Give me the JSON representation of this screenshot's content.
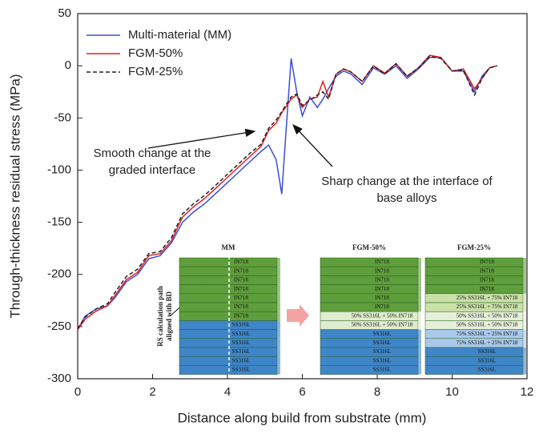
{
  "chart_data": {
    "type": "line",
    "xlabel": "Distance along build from substrate (mm)",
    "ylabel": "Through-thickness residual stress (MPa)",
    "xlim": [
      0,
      12
    ],
    "xticks": [
      0,
      2,
      4,
      6,
      8,
      10,
      12
    ],
    "ylim": [
      -300,
      50
    ],
    "yticks": [
      -300,
      -250,
      -200,
      -150,
      -100,
      -50,
      0,
      50
    ],
    "grid": false,
    "legend": "upper left",
    "x": [
      0,
      0.2,
      0.5,
      0.8,
      1.0,
      1.3,
      1.6,
      1.9,
      2.2,
      2.5,
      2.8,
      3.1,
      3.4,
      3.7,
      4.0,
      4.3,
      4.6,
      4.9,
      5.1,
      5.3,
      5.45,
      5.55,
      5.7,
      5.85,
      6.0,
      6.2,
      6.4,
      6.55,
      6.7,
      6.9,
      7.1,
      7.3,
      7.6,
      7.9,
      8.2,
      8.5,
      8.8,
      9.1,
      9.4,
      9.7,
      10.0,
      10.3,
      10.6,
      10.8,
      11.0,
      11.2
    ],
    "series": [
      {
        "name": "Multi-material (MM)",
        "color": "#3b4fd8",
        "line_style": "solid",
        "values": [
          -253,
          -240,
          -233,
          -230,
          -222,
          -207,
          -200,
          -185,
          -182,
          -170,
          -150,
          -140,
          -132,
          -122,
          -112,
          -102,
          -92,
          -82,
          -76,
          -90,
          -123,
          -70,
          7,
          -25,
          -48,
          -30,
          -40,
          -32,
          -22,
          -10,
          -5,
          -8,
          -18,
          -2,
          -8,
          0,
          -12,
          -3,
          8,
          8,
          -5,
          -5,
          -25,
          -10,
          -2,
          0
        ]
      },
      {
        "name": "FGM-50%",
        "color": "#e02020",
        "line_style": "solid",
        "values": [
          -253,
          -243,
          -235,
          -230,
          -220,
          -205,
          -198,
          -182,
          -180,
          -168,
          -145,
          -135,
          -127,
          -117,
          -107,
          -97,
          -87,
          -77,
          -62,
          -55,
          -45,
          -40,
          -32,
          -28,
          -40,
          -32,
          -30,
          -15,
          -30,
          -8,
          -3,
          -6,
          -15,
          0,
          -7,
          2,
          -10,
          -2,
          10,
          8,
          -5,
          -3,
          -22,
          -12,
          -2,
          0
        ]
      },
      {
        "name": "FGM-25%",
        "color": "#222222",
        "line_style": "dashed",
        "values": [
          -252,
          -241,
          -233,
          -228,
          -217,
          -202,
          -195,
          -180,
          -178,
          -165,
          -142,
          -132,
          -124,
          -114,
          -104,
          -94,
          -84,
          -75,
          -60,
          -52,
          -44,
          -38,
          -30,
          -27,
          -38,
          -33,
          -28,
          -25,
          -32,
          -8,
          -3,
          -6,
          -15,
          0,
          -8,
          2,
          -10,
          -2,
          9,
          7,
          -5,
          -4,
          -28,
          -12,
          -2,
          0
        ]
      }
    ],
    "annotations": [
      {
        "lines": [
          "Smooth change at the",
          "graded interface"
        ]
      },
      {
        "lines": [
          "Sharp change at the interface of",
          "base alloys"
        ]
      }
    ],
    "inset": {
      "path_label": [
        "RS calculation path",
        "aligned with BD"
      ],
      "panels": [
        {
          "title": "MM",
          "layers": [
            {
              "label": "IN718",
              "color": "#5f9e3c"
            },
            {
              "label": "IN718",
              "color": "#5f9e3c"
            },
            {
              "label": "IN718",
              "color": "#5f9e3c"
            },
            {
              "label": "IN718",
              "color": "#5f9e3c"
            },
            {
              "label": "IN718",
              "color": "#5f9e3c"
            },
            {
              "label": "IN718",
              "color": "#5f9e3c"
            },
            {
              "label": "IN718",
              "color": "#5f9e3c"
            },
            {
              "label": "SS316L",
              "color": "#3f86c8"
            },
            {
              "label": "SS316L",
              "color": "#3f86c8"
            },
            {
              "label": "SS316L",
              "color": "#3f86c8"
            },
            {
              "label": "SS316L",
              "color": "#3f86c8"
            },
            {
              "label": "SS316L",
              "color": "#3f86c8"
            },
            {
              "label": "SS316L",
              "color": "#3f86c8"
            }
          ]
        },
        {
          "title": "FGM-50%",
          "layers": [
            {
              "label": "IN718",
              "color": "#5f9e3c"
            },
            {
              "label": "IN718",
              "color": "#5f9e3c"
            },
            {
              "label": "IN718",
              "color": "#5f9e3c"
            },
            {
              "label": "IN718",
              "color": "#5f9e3c"
            },
            {
              "label": "IN718",
              "color": "#5f9e3c"
            },
            {
              "label": "IN718",
              "color": "#5f9e3c"
            },
            {
              "label": "50% SS316L + 50% IN718",
              "color": "#dfeccd"
            },
            {
              "label": "50% SS316L + 50% IN718",
              "color": "#dfeccd"
            },
            {
              "label": "SS316L",
              "color": "#3f86c8"
            },
            {
              "label": "SS316L",
              "color": "#3f86c8"
            },
            {
              "label": "SS316L",
              "color": "#3f86c8"
            },
            {
              "label": "SS316L",
              "color": "#3f86c8"
            },
            {
              "label": "SS316L",
              "color": "#3f86c8"
            }
          ]
        },
        {
          "title": "FGM-25%",
          "layers": [
            {
              "label": "IN718",
              "color": "#5f9e3c"
            },
            {
              "label": "IN718",
              "color": "#5f9e3c"
            },
            {
              "label": "IN718",
              "color": "#5f9e3c"
            },
            {
              "label": "IN718",
              "color": "#5f9e3c"
            },
            {
              "label": "25% SS316L + 75% IN718",
              "color": "#c9e0a9"
            },
            {
              "label": "25% SS316L + 75% IN718",
              "color": "#c9e0a9"
            },
            {
              "label": "50% SS316L + 50% IN718",
              "color": "#e6efda"
            },
            {
              "label": "50% SS316L + 50% IN718",
              "color": "#e6efda"
            },
            {
              "label": "75% SS316L + 25% IN718",
              "color": "#a9c9ea"
            },
            {
              "label": "75% SS316L + 25% IN718",
              "color": "#a9c9ea"
            },
            {
              "label": "SS316L",
              "color": "#3f86c8"
            },
            {
              "label": "SS316L",
              "color": "#3f86c8"
            },
            {
              "label": "SS316L",
              "color": "#3f86c8"
            }
          ]
        }
      ]
    }
  }
}
